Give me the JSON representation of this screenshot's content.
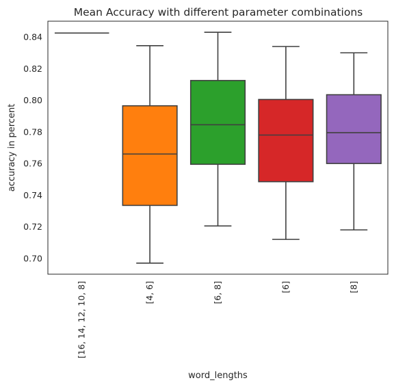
{
  "chart_data": {
    "type": "box",
    "title": "Mean Accuracy with different parameter combinations",
    "xlabel": "word_lengths",
    "ylabel": "accuracy in percent",
    "ylim": [
      0.69,
      0.85
    ],
    "yticks": [
      0.7,
      0.72,
      0.74,
      0.76,
      0.78,
      0.8,
      0.82,
      0.84
    ],
    "grid": false,
    "categories": [
      "[16, 14, 12, 10, 8]",
      "[4, 6]",
      "[6, 8]",
      "[6]",
      "[8]"
    ],
    "colors": [
      "#1f77b4",
      "#ff7f0e",
      "#2ca02c",
      "#d62728",
      "#9467bd"
    ],
    "boxes": [
      {
        "whislo": 0.8425,
        "q1": 0.8425,
        "med": 0.8425,
        "q3": 0.8425,
        "whishi": 0.8425
      },
      {
        "whislo": 0.697,
        "q1": 0.7335,
        "med": 0.766,
        "q3": 0.7965,
        "whishi": 0.8345
      },
      {
        "whislo": 0.7205,
        "q1": 0.7595,
        "med": 0.7845,
        "q3": 0.8125,
        "whishi": 0.843
      },
      {
        "whislo": 0.712,
        "q1": 0.7485,
        "med": 0.778,
        "q3": 0.8005,
        "whishi": 0.834
      },
      {
        "whislo": 0.718,
        "q1": 0.76,
        "med": 0.7795,
        "q3": 0.8035,
        "whishi": 0.83
      }
    ]
  }
}
